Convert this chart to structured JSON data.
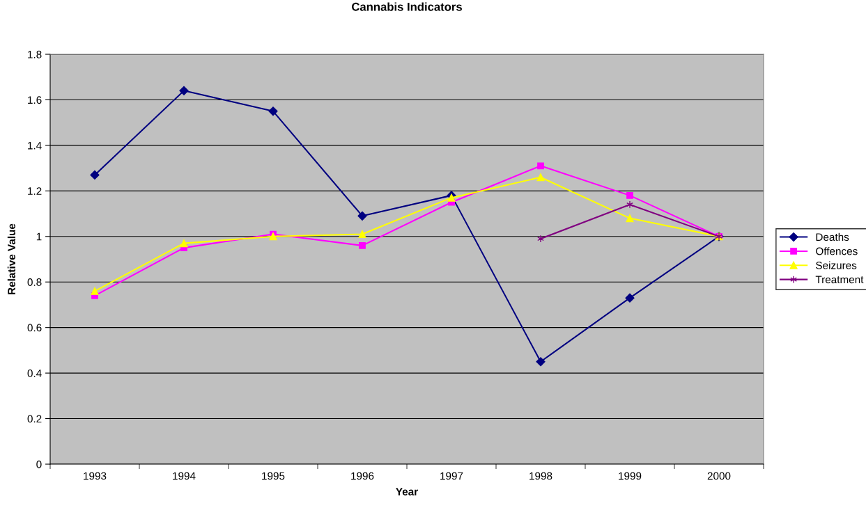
{
  "chart_data": {
    "type": "line",
    "title": "Cannabis Indicators",
    "xlabel": "Year",
    "ylabel": "Relative Value",
    "categories": [
      "1993",
      "1994",
      "1995",
      "1996",
      "1997",
      "1998",
      "1999",
      "2000"
    ],
    "series": [
      {
        "name": "Deaths",
        "color": "#000080",
        "marker": "diamond",
        "values": [
          1.27,
          1.64,
          1.55,
          1.09,
          1.18,
          0.45,
          0.73,
          1.0
        ]
      },
      {
        "name": "Offences",
        "color": "#ff00ff",
        "marker": "square",
        "values": [
          0.74,
          0.95,
          1.01,
          0.96,
          1.15,
          1.31,
          1.18,
          1.0
        ]
      },
      {
        "name": "Seizures",
        "color": "#ffff00",
        "marker": "triangle",
        "values": [
          0.76,
          0.97,
          1.0,
          1.01,
          1.17,
          1.26,
          1.08,
          1.0
        ]
      },
      {
        "name": "Treatment",
        "color": "#800080",
        "marker": "cross",
        "values": [
          null,
          null,
          null,
          null,
          null,
          0.99,
          1.14,
          1.0
        ]
      }
    ],
    "ylim": [
      0,
      1.8
    ],
    "yticks": [
      0,
      0.2,
      0.4,
      0.6,
      0.8,
      1,
      1.2,
      1.4,
      1.6,
      1.8
    ],
    "grid": "y",
    "legend": "right"
  }
}
